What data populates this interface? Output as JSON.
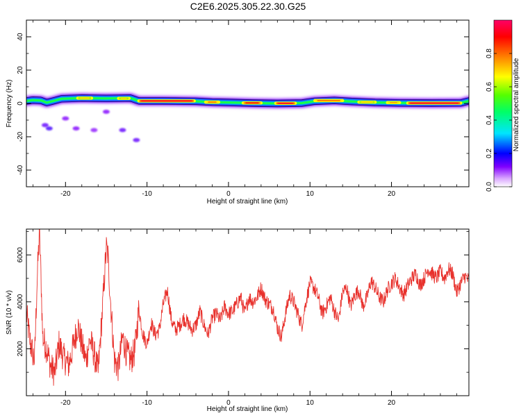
{
  "title": "C2E6.2025.305.22.30.G25",
  "chart_data": [
    {
      "type": "heatmap",
      "name": "spectrogram",
      "xlabel": "Height of straight line (km)",
      "ylabel": "Frequency (Hz)",
      "xlim": [
        -24.8,
        29.5
      ],
      "ylim": [
        -50,
        50
      ],
      "x_ticks": [
        -20,
        -10,
        0,
        10,
        20
      ],
      "y_ticks": [
        -40,
        -20,
        0,
        20,
        40
      ],
      "x_tick_labels": [
        "-20",
        "-10",
        "0",
        "10",
        "20"
      ],
      "y_tick_labels": [
        "-40",
        "-20",
        "0",
        "20",
        "40"
      ],
      "colorbar": {
        "label": "Normalized spectral amplitude",
        "range": [
          0.0,
          1.0
        ],
        "ticks": [
          0.0,
          0.2,
          0.4,
          0.6,
          0.8
        ],
        "tick_labels": [
          "0.0",
          "0.2",
          "0.4",
          "0.6",
          "0.8"
        ],
        "colors": [
          "#ffffff",
          "#d9a6ff",
          "#8000ff",
          "#0000ff",
          "#00e5ff",
          "#00ff66",
          "#55ff00",
          "#ffff00",
          "#ff8000",
          "#ff0000",
          "#ff0066"
        ]
      },
      "centerline": [
        [
          -24.8,
          1.5
        ],
        [
          -24.0,
          2.0
        ],
        [
          -23.0,
          1.8
        ],
        [
          -22.3,
          0.5
        ],
        [
          -21.5,
          1.5
        ],
        [
          -20.5,
          2.8
        ],
        [
          -18.0,
          3.2
        ],
        [
          -15.0,
          3.0
        ],
        [
          -12.0,
          3.2
        ],
        [
          -11.0,
          1.5
        ],
        [
          -8.0,
          1.5
        ],
        [
          -4.0,
          1.3
        ],
        [
          -2.0,
          0.8
        ],
        [
          0.0,
          0.6
        ],
        [
          3.0,
          0.2
        ],
        [
          6.0,
          0.0
        ],
        [
          9.0,
          0.2
        ],
        [
          10.5,
          1.3
        ],
        [
          13.0,
          1.8
        ],
        [
          15.0,
          1.2
        ],
        [
          18.0,
          0.6
        ],
        [
          21.0,
          0.3
        ],
        [
          25.0,
          0.2
        ],
        [
          28.5,
          0.3
        ],
        [
          29.5,
          1.5
        ]
      ],
      "hotspots": [
        {
          "x_range": [
            -11.0,
            -4.2
          ],
          "freq": 1.5,
          "amp": 0.95
        },
        {
          "x_range": [
            -2.8,
            -1.2
          ],
          "freq": 0.8,
          "amp": 0.8
        },
        {
          "x_range": [
            1.8,
            4.0
          ],
          "freq": 0.3,
          "amp": 0.9
        },
        {
          "x_range": [
            5.8,
            8.2
          ],
          "freq": 0.1,
          "amp": 0.95
        },
        {
          "x_range": [
            10.6,
            14.0
          ],
          "freq": 1.7,
          "amp": 0.8
        },
        {
          "x_range": [
            16.0,
            18.0
          ],
          "freq": 0.8,
          "amp": 0.7
        },
        {
          "x_range": [
            19.5,
            21.0
          ],
          "freq": 0.5,
          "amp": 0.75
        },
        {
          "x_range": [
            22.0,
            28.5
          ],
          "freq": 0.2,
          "amp": 0.95
        },
        {
          "x_range": [
            -18.5,
            -16.8
          ],
          "freq": 3.2,
          "amp": 0.7
        },
        {
          "x_range": [
            -13.5,
            -12.2
          ],
          "freq": 3.0,
          "amp": 0.7
        }
      ],
      "scatter_blobs": [
        {
          "x": -22.5,
          "y": -13,
          "amp": 0.1
        },
        {
          "x": -22.0,
          "y": -15,
          "amp": 0.12
        },
        {
          "x": -20.0,
          "y": -9,
          "amp": 0.08
        },
        {
          "x": -18.7,
          "y": -15,
          "amp": 0.08
        },
        {
          "x": -16.5,
          "y": -16,
          "amp": 0.07
        },
        {
          "x": -13.0,
          "y": -16,
          "amp": 0.1
        },
        {
          "x": -11.3,
          "y": -22,
          "amp": 0.1
        },
        {
          "x": -15.0,
          "y": -5,
          "amp": 0.08
        }
      ]
    },
    {
      "type": "line",
      "name": "snr",
      "xlabel": "Height of straight line (km)",
      "ylabel": "SNR (10 * v/v)",
      "xlim": [
        -24.8,
        29.5
      ],
      "ylim": [
        0,
        7100
      ],
      "x_ticks": [
        -20,
        -10,
        0,
        10,
        20
      ],
      "y_ticks": [
        2000,
        4000,
        6000
      ],
      "x_tick_labels": [
        "-20",
        "-10",
        "0",
        "10",
        "20"
      ],
      "y_tick_labels": [
        "2000",
        "4000",
        "6000"
      ],
      "color": "#e8312c",
      "series": [
        {
          "name": "SNR",
          "x": [
            -24.8,
            -24.3,
            -23.8,
            -23.5,
            -23.2,
            -23.0,
            -22.8,
            -22.3,
            -21.8,
            -21.3,
            -20.8,
            -20.2,
            -19.6,
            -19.0,
            -18.5,
            -18.0,
            -17.5,
            -17.0,
            -16.5,
            -16.0,
            -15.5,
            -15.0,
            -14.8,
            -14.5,
            -14.0,
            -13.5,
            -13.0,
            -12.5,
            -12.0,
            -11.5,
            -11.0,
            -10.5,
            -10.0,
            -9.5,
            -9.0,
            -8.5,
            -8.0,
            -7.5,
            -7.0,
            -6.5,
            -6.0,
            -5.5,
            -5.0,
            -4.5,
            -4.0,
            -3.5,
            -3.0,
            -2.5,
            -2.0,
            -1.5,
            -1.0,
            -0.5,
            0.0,
            0.5,
            1.0,
            1.5,
            2.0,
            2.5,
            3.0,
            3.5,
            4.0,
            4.5,
            5.0,
            5.5,
            6.0,
            6.5,
            7.0,
            7.5,
            8.0,
            8.5,
            9.0,
            9.5,
            10.0,
            10.5,
            11.0,
            11.5,
            12.0,
            12.5,
            13.0,
            13.5,
            14.0,
            14.5,
            15.0,
            15.5,
            16.0,
            16.5,
            17.0,
            17.5,
            18.0,
            18.5,
            19.0,
            19.5,
            20.0,
            20.5,
            21.0,
            21.5,
            22.0,
            22.5,
            23.0,
            23.5,
            24.0,
            24.5,
            25.0,
            25.5,
            26.0,
            26.5,
            27.0,
            27.5,
            28.0,
            28.5,
            29.0,
            29.5
          ],
          "values": [
            3500,
            2200,
            1500,
            4800,
            7000,
            5000,
            2500,
            2000,
            1200,
            1000,
            2200,
            1600,
            1300,
            2200,
            3000,
            2200,
            1500,
            2400,
            1800,
            1000,
            3500,
            6300,
            6000,
            4200,
            1500,
            1200,
            2500,
            1800,
            1500,
            1900,
            3700,
            2600,
            2200,
            3100,
            2600,
            2800,
            3900,
            4500,
            3200,
            2800,
            3000,
            3300,
            3100,
            2800,
            3000,
            3600,
            3000,
            2600,
            3300,
            3500,
            3200,
            3800,
            3500,
            3600,
            3900,
            4200,
            3500,
            4200,
            4000,
            4200,
            4600,
            4100,
            3900,
            3700,
            2900,
            2500,
            3500,
            4300,
            4000,
            3500,
            3000,
            4000,
            4800,
            4600,
            4200,
            3500,
            3800,
            4200,
            3600,
            3200,
            4400,
            4600,
            3800,
            4300,
            4500,
            3800,
            4200,
            4900,
            4600,
            4200,
            4000,
            4500,
            4800,
            5000,
            4600,
            4300,
            4700,
            5000,
            5200,
            4700,
            5000,
            5400,
            5200,
            5000,
            5300,
            5000,
            5400,
            5200,
            4400,
            4800,
            5100,
            4900
          ]
        }
      ]
    }
  ]
}
